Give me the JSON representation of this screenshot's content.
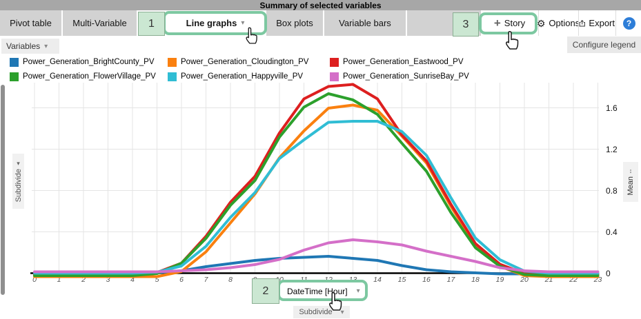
{
  "title_bar": {
    "title": "Summary of selected variables"
  },
  "tab_bar": {
    "tabs": [
      {
        "label": "Pivot table",
        "selected": false
      },
      {
        "label": "Multi-Variable",
        "selected": false
      },
      {
        "label": "Line graphs",
        "selected": true
      },
      {
        "label": "Box plots",
        "selected": false
      },
      {
        "label": "Variable bars",
        "selected": false
      }
    ],
    "story_label": "Story",
    "options_label": "Options",
    "export_label": "Export",
    "help_label": "?"
  },
  "controls": {
    "variables_label": "Variables",
    "configure_legend_label": "Configure legend",
    "subdivide_left_label": "Subdivide",
    "mean_axis_label": "Mean",
    "mean_axis_arrow": "↕",
    "x_axis_selector_label": "DateTime [Hour]",
    "subdivide_bottom_label": "Subdivide"
  },
  "annotations": {
    "one": "1",
    "two": "2",
    "three": "3"
  },
  "legend": {
    "items": [
      {
        "label": "Power_Generation_BrightCounty_PV",
        "color": "#1f77b4"
      },
      {
        "label": "Power_Generation_Cloudington_PV",
        "color": "#fa800f"
      },
      {
        "label": "Power_Generation_Eastwood_PV",
        "color": "#dd1f1f"
      },
      {
        "label": "Power_Generation_FlowerVillage_PV",
        "color": "#2ca02c"
      },
      {
        "label": "Power_Generation_Happyville_PV",
        "color": "#30bdd4"
      },
      {
        "label": "Power_Generation_SunriseBay_PV",
        "color": "#d46fc8"
      }
    ]
  },
  "chart_data": {
    "type": "line",
    "xlabel": "DateTime [Hour]",
    "ylabel": "Mean",
    "x": [
      0,
      1,
      2,
      3,
      4,
      5,
      6,
      7,
      8,
      9,
      10,
      11,
      12,
      13,
      14,
      15,
      16,
      17,
      18,
      19,
      20,
      21,
      22,
      23
    ],
    "y_ticks": [
      0,
      0.4,
      0.8,
      1.2,
      1.6
    ],
    "ylim": [
      0,
      1.86
    ],
    "grid": true,
    "legend_position": "top",
    "series": [
      {
        "name": "Power_Generation_BrightCounty_PV",
        "color": "#1f77b4",
        "values": [
          0,
          0,
          0,
          0,
          0,
          0.01,
          0.03,
          0.07,
          0.1,
          0.13,
          0.15,
          0.16,
          0.17,
          0.15,
          0.13,
          0.08,
          0.04,
          0.02,
          0.01,
          0,
          0,
          0,
          0,
          0
        ]
      },
      {
        "name": "Power_Generation_Cloudington_PV",
        "color": "#fa800f",
        "values": [
          0,
          0,
          0,
          0,
          0,
          0,
          0.05,
          0.24,
          0.52,
          0.8,
          1.15,
          1.41,
          1.63,
          1.66,
          1.61,
          1.36,
          1.1,
          0.68,
          0.3,
          0.1,
          0.01,
          0,
          0,
          0
        ]
      },
      {
        "name": "Power_Generation_Eastwood_PV",
        "color": "#dd1f1f",
        "values": [
          0,
          0,
          0,
          0,
          0,
          0.02,
          0.11,
          0.37,
          0.7,
          0.95,
          1.37,
          1.7,
          1.82,
          1.84,
          1.7,
          1.35,
          1.1,
          0.68,
          0.3,
          0.1,
          0.01,
          0,
          0,
          0
        ]
      },
      {
        "name": "Power_Generation_FlowerVillage_PV",
        "color": "#2ca02c",
        "values": [
          0,
          0,
          0,
          0,
          0,
          0.02,
          0.12,
          0.36,
          0.68,
          0.92,
          1.34,
          1.63,
          1.76,
          1.7,
          1.56,
          1.28,
          1.01,
          0.61,
          0.27,
          0.09,
          0.01,
          0,
          0,
          0
        ]
      },
      {
        "name": "Power_Generation_Happyville_PV",
        "color": "#30bdd4",
        "values": [
          0,
          0,
          0,
          0,
          0,
          0.01,
          0.07,
          0.26,
          0.54,
          0.78,
          1.11,
          1.29,
          1.46,
          1.47,
          1.47,
          1.37,
          1.14,
          0.73,
          0.34,
          0.13,
          0.02,
          0,
          0,
          0
        ]
      },
      {
        "name": "Power_Generation_SunriseBay_PV",
        "color": "#d46fc8",
        "values": [
          0,
          0,
          0,
          0,
          0,
          0,
          0.01,
          0.02,
          0.04,
          0.07,
          0.12,
          0.21,
          0.28,
          0.31,
          0.29,
          0.26,
          0.2,
          0.15,
          0.1,
          0.04,
          0.01,
          0,
          0,
          0
        ]
      }
    ]
  }
}
